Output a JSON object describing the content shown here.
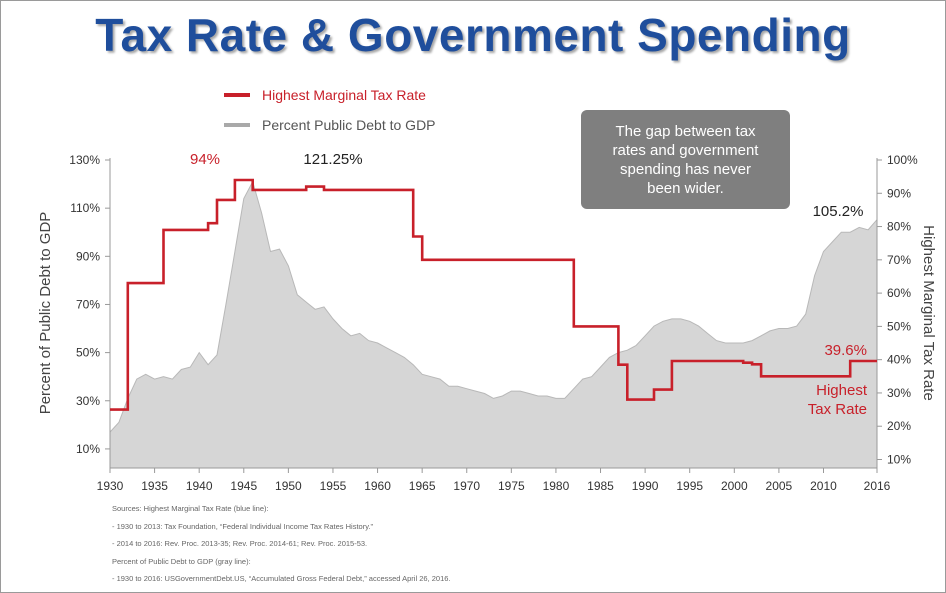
{
  "title": "Tax Rate & Government Spending",
  "legend": {
    "tax_label": "Highest Marginal Tax Rate",
    "debt_label": "Percent Public Debt to GDP"
  },
  "callout_text": "The gap between tax rates and government spending has never been wider.",
  "annotations": {
    "peak_tax": "94%",
    "peak_debt": "121.25%",
    "current_debt": "105.2%",
    "current_tax": "39.6%",
    "tax_line_label_1": "Highest",
    "tax_line_label_2": "Tax Rate"
  },
  "sources": [
    "Sources: Highest Marginal Tax Rate (blue line):",
    "- 1930 to 2013: Tax Foundation, “Federal Individual Income Tax Rates History.”",
    "- 2014 to 2016: Rev. Proc. 2013-35; Rev. Proc. 2014-61; Rev. Proc. 2015-53.",
    "Percent of Public Debt to GDP (gray line):",
    "- 1930 to 2016: USGovernmentDebt.US, “Accumulated Gross Federal Debt,” accessed April 26, 2016."
  ],
  "colors": {
    "tax": "#c8202a",
    "debt_fill": "#d6d6d6",
    "debt_line": "#b8b8b8",
    "title": "#1f4e9c"
  },
  "chart_data": {
    "type": "area",
    "xlabel": "",
    "ylabel_left": "Percent of Public Debt to GDP",
    "ylabel_right": "Highest Marginal Tax Rate",
    "xlim": [
      1930,
      2016
    ],
    "ylim_left": [
      0,
      130
    ],
    "ylim_right": [
      7,
      100
    ],
    "x_ticks": [
      1930,
      1935,
      1940,
      1945,
      1950,
      1955,
      1960,
      1965,
      1970,
      1975,
      1980,
      1985,
      1990,
      1995,
      2000,
      2005,
      2010,
      2016
    ],
    "y_left_ticks": [
      "10%",
      "30%",
      "50%",
      "70%",
      "90%",
      "110%",
      "130%"
    ],
    "y_left_values": [
      10,
      30,
      50,
      70,
      90,
      110,
      130
    ],
    "y_right_ticks": [
      "10%",
      "20%",
      "30%",
      "40%",
      "50%",
      "60%",
      "70%",
      "80%",
      "90%",
      "100%"
    ],
    "y_right_values": [
      10,
      20,
      30,
      40,
      50,
      60,
      70,
      80,
      90,
      100
    ],
    "series": [
      {
        "name": "Percent Public Debt to GDP",
        "axis": "left",
        "x": [
          1930,
          1931,
          1932,
          1933,
          1934,
          1935,
          1936,
          1937,
          1938,
          1939,
          1940,
          1941,
          1942,
          1943,
          1944,
          1945,
          1946,
          1947,
          1948,
          1949,
          1950,
          1951,
          1952,
          1953,
          1954,
          1955,
          1956,
          1957,
          1958,
          1959,
          1960,
          1961,
          1962,
          1963,
          1964,
          1965,
          1966,
          1967,
          1968,
          1969,
          1970,
          1971,
          1972,
          1973,
          1974,
          1975,
          1976,
          1977,
          1978,
          1979,
          1980,
          1981,
          1982,
          1983,
          1984,
          1985,
          1986,
          1987,
          1988,
          1989,
          1990,
          1991,
          1992,
          1993,
          1994,
          1995,
          1996,
          1997,
          1998,
          1999,
          2000,
          2001,
          2002,
          2003,
          2004,
          2005,
          2006,
          2007,
          2008,
          2009,
          2010,
          2011,
          2012,
          2013,
          2014,
          2015,
          2016
        ],
        "values": [
          17,
          21,
          31,
          39,
          41,
          39,
          40,
          39,
          43,
          44,
          50,
          45,
          49,
          70,
          92,
          114,
          121,
          108,
          92,
          93,
          86,
          74,
          71,
          68,
          69,
          64,
          60,
          57,
          58,
          55,
          54,
          52,
          50,
          48,
          45,
          41,
          40,
          39,
          36,
          36,
          35,
          34,
          33,
          31,
          32,
          34,
          34,
          33,
          32,
          32,
          31,
          31,
          35,
          39,
          40,
          44,
          48,
          50,
          51,
          53,
          57,
          61,
          63,
          64,
          64,
          63,
          61,
          58,
          55,
          54,
          54,
          54,
          55,
          57,
          59,
          60,
          60,
          61,
          66,
          82,
          92,
          96,
          100,
          100,
          102,
          101,
          105.2
        ]
      },
      {
        "name": "Highest Marginal Tax Rate",
        "axis": "right",
        "step": true,
        "x": [
          1930,
          1932,
          1934,
          1936,
          1940,
          1941,
          1942,
          1944,
          1946,
          1951,
          1952,
          1954,
          1964,
          1965,
          1982,
          1987,
          1988,
          1991,
          1993,
          2001,
          2002,
          2003,
          2013,
          2016
        ],
        "values": [
          25,
          63,
          63,
          79,
          79,
          81,
          88,
          94,
          91,
          91,
          92,
          91,
          77,
          70,
          50,
          38.5,
          28,
          31,
          39.6,
          39.1,
          38.6,
          35,
          39.6,
          39.6
        ]
      }
    ]
  }
}
